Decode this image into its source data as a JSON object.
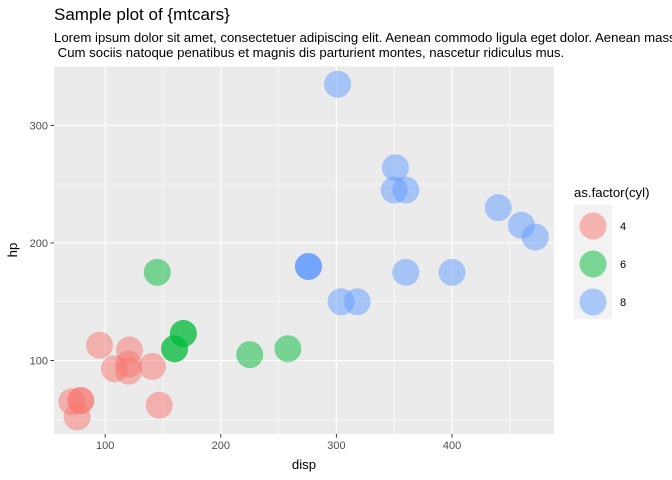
{
  "chart_data": {
    "type": "scatter",
    "title": "Sample plot of {mtcars}",
    "subtitle": "Lorem ipsum dolor sit amet, consectetuer adipiscing elit. Aenean commodo ligula eget dolor. Aenean massa.\n Cum sociis natoque penatibus et magnis dis parturient montes, nascetur ridiculus mus.",
    "xlabel": "disp",
    "ylabel": "hp",
    "xlim": [
      55.7,
      488.2
    ],
    "ylim": [
      37.5,
      350.5
    ],
    "x_ticks": [
      100,
      200,
      300,
      400
    ],
    "y_ticks": [
      100,
      200,
      300
    ],
    "legend_title": "as.factor(cyl)",
    "legend_position": "right",
    "grid": true,
    "background": "#ebebeb",
    "point_alpha": 0.5,
    "series": [
      {
        "name": "4",
        "color": "#f8766d",
        "points": [
          {
            "x": 108,
            "y": 93
          },
          {
            "x": 146.7,
            "y": 62
          },
          {
            "x": 140.8,
            "y": 95
          },
          {
            "x": 78.7,
            "y": 66
          },
          {
            "x": 75.7,
            "y": 52
          },
          {
            "x": 71.1,
            "y": 65
          },
          {
            "x": 120.1,
            "y": 97
          },
          {
            "x": 79,
            "y": 66
          },
          {
            "x": 120.3,
            "y": 91
          },
          {
            "x": 95.1,
            "y": 113
          },
          {
            "x": 121,
            "y": 109
          }
        ]
      },
      {
        "name": "6",
        "color": "#00ba38",
        "points": [
          {
            "x": 160,
            "y": 110
          },
          {
            "x": 160,
            "y": 110
          },
          {
            "x": 258,
            "y": 110
          },
          {
            "x": 225,
            "y": 105
          },
          {
            "x": 167.6,
            "y": 123
          },
          {
            "x": 167.6,
            "y": 123
          },
          {
            "x": 145,
            "y": 175
          }
        ]
      },
      {
        "name": "8",
        "color": "#619cff",
        "points": [
          {
            "x": 360,
            "y": 175
          },
          {
            "x": 360,
            "y": 245
          },
          {
            "x": 275.8,
            "y": 180
          },
          {
            "x": 275.8,
            "y": 180
          },
          {
            "x": 275.8,
            "y": 180
          },
          {
            "x": 472,
            "y": 205
          },
          {
            "x": 460,
            "y": 215
          },
          {
            "x": 440,
            "y": 230
          },
          {
            "x": 318,
            "y": 150
          },
          {
            "x": 304,
            "y": 150
          },
          {
            "x": 350,
            "y": 245
          },
          {
            "x": 400,
            "y": 175
          },
          {
            "x": 351,
            "y": 264
          },
          {
            "x": 301,
            "y": 335
          }
        ]
      }
    ]
  }
}
